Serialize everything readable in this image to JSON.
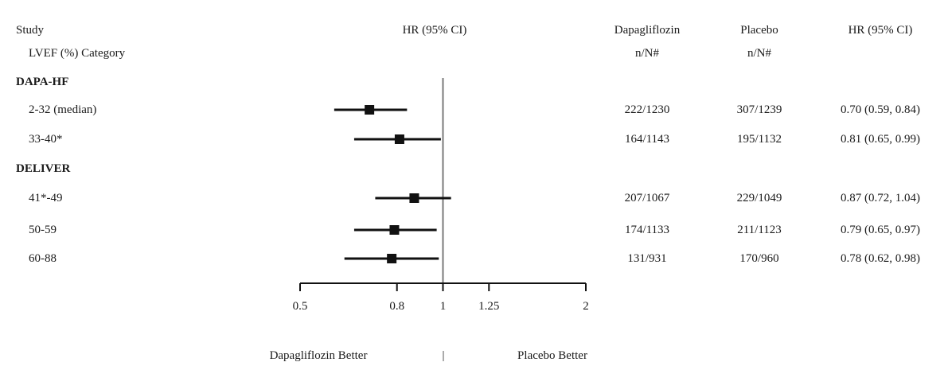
{
  "header": {
    "study": "Study",
    "category": "LVEF (%) Category",
    "hr_plot": "HR (95% CI)",
    "dapa_line1": "Dapagliflozin",
    "dapa_line2": "n/N#",
    "placebo_line1": "Placebo",
    "placebo_line2": "n/N#",
    "hr_col": "HR (95% CI)"
  },
  "footer": {
    "left": "Dapagliflozin Better",
    "sep": "|",
    "right": "Placebo Better"
  },
  "chart_data": {
    "type": "forest",
    "x_scale": "log",
    "xlim": [
      0.5,
      2
    ],
    "x_ticks": [
      0.5,
      0.8,
      1,
      1.25,
      2
    ],
    "x_tick_labels": [
      "0.5",
      "0.8",
      "1",
      "1.25",
      "2"
    ],
    "reference_line": 1,
    "groups": [
      {
        "name": "DAPA-HF",
        "rows": [
          {
            "label": "2-32 (median)",
            "hr": 0.7,
            "lo": 0.59,
            "hi": 0.84,
            "dapa": "222/1230",
            "placebo": "307/1239",
            "ci_text": "0.70 (0.59, 0.84)"
          },
          {
            "label": "33-40*",
            "hr": 0.81,
            "lo": 0.65,
            "hi": 0.99,
            "dapa": "164/1143",
            "placebo": "195/1132",
            "ci_text": "0.81 (0.65, 0.99)"
          }
        ]
      },
      {
        "name": "DELIVER",
        "rows": [
          {
            "label": "41*-49",
            "hr": 0.87,
            "lo": 0.72,
            "hi": 1.04,
            "dapa": "207/1067",
            "placebo": "229/1049",
            "ci_text": "0.87 (0.72, 1.04)"
          },
          {
            "label": "50-59",
            "hr": 0.79,
            "lo": 0.65,
            "hi": 0.97,
            "dapa": "174/1133",
            "placebo": "211/1123",
            "ci_text": "0.79 (0.65, 0.97)"
          },
          {
            "label": "60-88",
            "hr": 0.78,
            "lo": 0.62,
            "hi": 0.98,
            "dapa": "131/931",
            "placebo": "170/960",
            "ci_text": "0.78 (0.62, 0.98)"
          }
        ]
      }
    ]
  }
}
